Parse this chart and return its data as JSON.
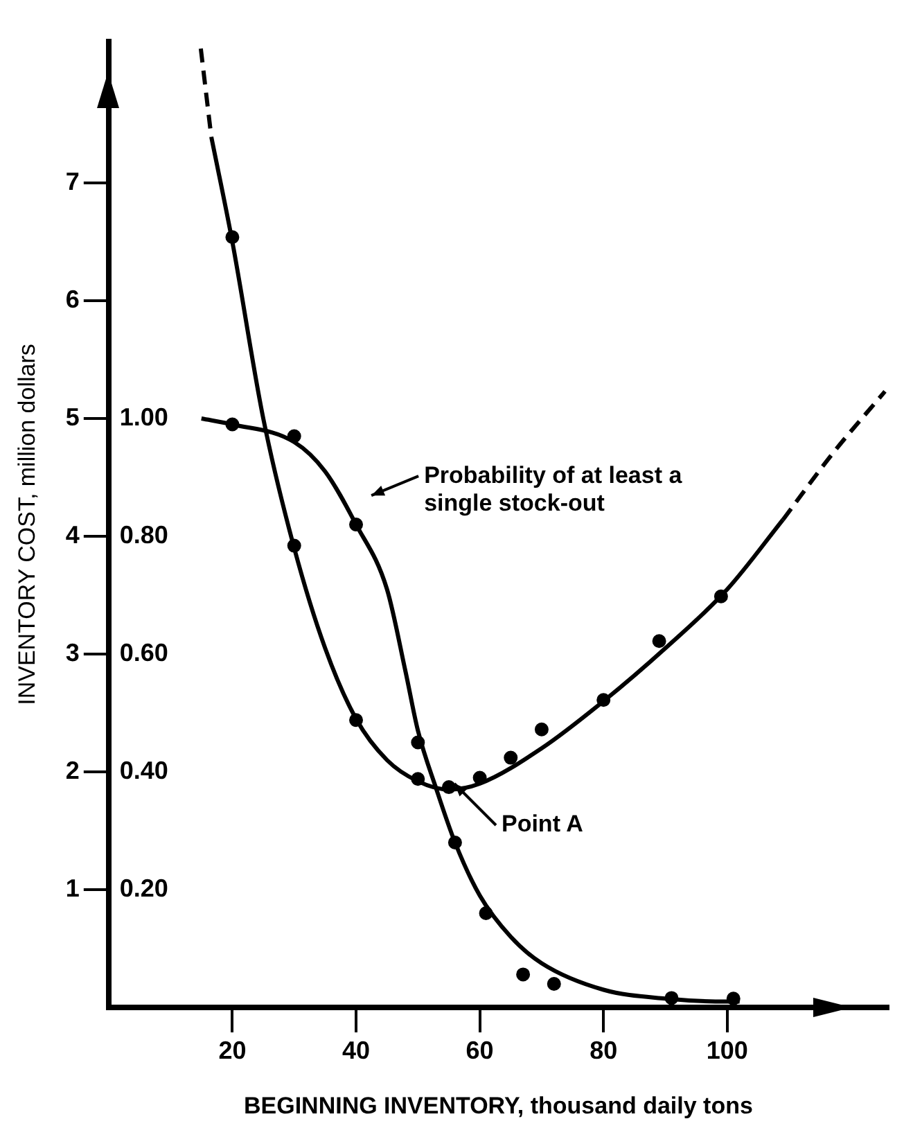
{
  "chart_data": {
    "type": "line",
    "xlabel": "BEGINNING INVENTORY, thousand daily tons",
    "ylabel": "INVENTORY COST, million dollars",
    "xlim": [
      0,
      126
    ],
    "xticks": [
      20,
      40,
      60,
      80,
      100
    ],
    "ylim": [
      0,
      8.2
    ],
    "yticks": [
      1,
      2,
      3,
      4,
      5,
      6,
      7
    ],
    "y2lim": [
      0,
      1.64
    ],
    "y2ticks": [
      {
        "value": 0.2,
        "label": "0.20"
      },
      {
        "value": 0.4,
        "label": "0.40"
      },
      {
        "value": 0.6,
        "label": "0.60"
      },
      {
        "value": 0.8,
        "label": "0.80"
      },
      {
        "value": 1.0,
        "label": "1.00"
      }
    ],
    "marker": "none",
    "line_style": "solid",
    "series": [
      {
        "type": "line",
        "color": "#000000",
        "x": [
          16.6,
          20,
          25,
          30,
          35,
          40,
          45,
          50,
          55,
          60,
          70,
          80,
          90,
          100,
          109
        ],
        "values": [
          7.39,
          6.5,
          5.0,
          3.9,
          3.05,
          2.45,
          2.1,
          1.92,
          1.85,
          1.9,
          2.2,
          2.6,
          3.05,
          3.55,
          4.14
        ]
      },
      {
        "type": "line",
        "color": "#000000",
        "line_style": "dashed",
        "x": [
          14.9,
          16.6
        ],
        "values": [
          8.14,
          7.39
        ]
      },
      {
        "type": "line",
        "color": "#000000",
        "line_style": "dashed",
        "x": [
          109,
          117,
          125.5
        ],
        "values": [
          4.14,
          4.7,
          5.23
        ]
      },
      {
        "type": "scatter",
        "color": "#000000",
        "marker": "circle",
        "x": [
          20,
          30,
          40,
          50,
          55,
          60,
          65,
          70,
          80,
          89,
          99
        ],
        "values": [
          6.54,
          3.92,
          2.44,
          1.94,
          1.87,
          1.95,
          2.12,
          2.36,
          2.61,
          3.11,
          3.49
        ]
      },
      {
        "type": "line",
        "color": "#000000",
        "axis": "y2",
        "x": [
          15,
          20,
          30,
          35,
          40,
          45,
          48,
          50,
          53,
          56,
          60,
          65,
          70,
          80,
          90,
          100,
          102
        ],
        "values": [
          1.0,
          0.99,
          0.96,
          0.91,
          0.82,
          0.71,
          0.57,
          0.47,
          0.37,
          0.28,
          0.19,
          0.12,
          0.075,
          0.03,
          0.015,
          0.01,
          0.01
        ]
      },
      {
        "type": "scatter",
        "color": "#000000",
        "marker": "circle",
        "axis": "y2",
        "x": [
          20,
          30,
          40,
          50,
          53,
          56,
          61,
          67,
          72,
          91,
          101
        ],
        "values": [
          0.99,
          0.97,
          0.82,
          0.45,
          null,
          0.28,
          0.16,
          0.056,
          0.04,
          0.016,
          0.015
        ]
      }
    ],
    "annotations": [
      "Probability of at least a single stock-out",
      {
        "text": "Point A",
        "x": 55,
        "y": 1.9
      }
    ]
  }
}
